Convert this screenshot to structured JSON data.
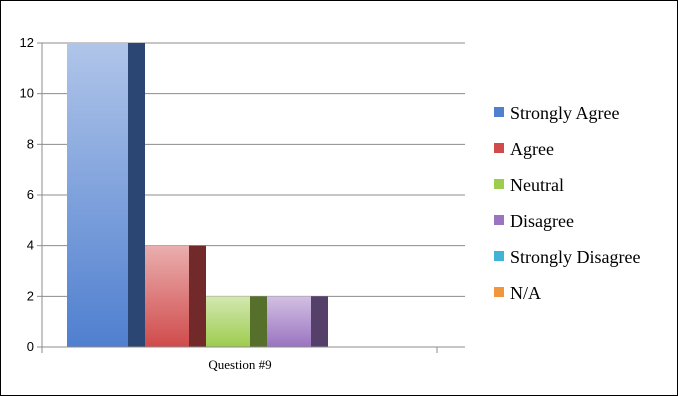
{
  "chart_data": {
    "type": "bar",
    "categories": [
      "Question #9"
    ],
    "series": [
      {
        "name": "Strongly Agree",
        "values": [
          12
        ],
        "color": "#4f7fcf"
      },
      {
        "name": "Agree",
        "values": [
          4
        ],
        "color": "#d04b4b"
      },
      {
        "name": "Neutral",
        "values": [
          2
        ],
        "color": "#9dcc4f"
      },
      {
        "name": "Disagree",
        "values": [
          2
        ],
        "color": "#9a74c0"
      },
      {
        "name": "Strongly Disagree",
        "values": [
          0
        ],
        "color": "#3fb4d4"
      },
      {
        "name": "N/A",
        "values": [
          0
        ],
        "color": "#f0963f"
      }
    ],
    "yticks": [
      "0",
      "2",
      "4",
      "6",
      "8",
      "10",
      "12"
    ],
    "ylim": [
      0,
      12
    ],
    "grid": true,
    "legend": "right",
    "style": "3d-bar"
  }
}
